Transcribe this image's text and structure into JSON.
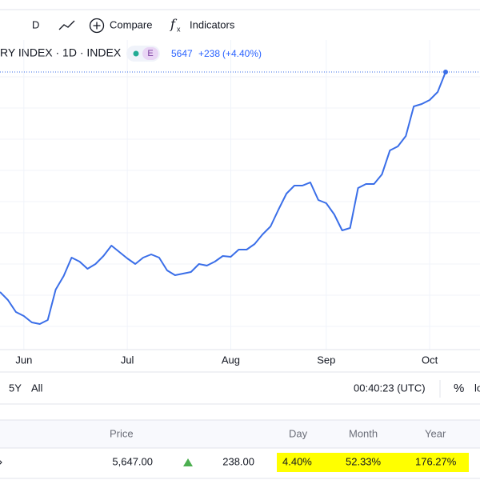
{
  "toolbar": {
    "interval": "D",
    "compare": "Compare",
    "indicators": "Indicators"
  },
  "legend": {
    "symbol": "RY INDEX · 1D · INDEX",
    "badge": "E",
    "last": "5647",
    "change": "+238",
    "change_pct": "(+4.40%)"
  },
  "range_bar": {
    "ranges": [
      "5Y",
      "All"
    ],
    "clock": "00:40:23 (UTC)",
    "percent": "%",
    "log": "lo"
  },
  "table": {
    "headers": [
      "Price",
      "Day",
      "Month",
      "Year"
    ],
    "row": {
      "price": "5,647.00",
      "change": "238.00",
      "day": "4.40%",
      "month": "52.33%",
      "year": "176.27%"
    }
  },
  "chart_data": {
    "type": "line",
    "color": "#3a6ee8",
    "categories": [
      null,
      null,
      null,
      "Jun",
      null,
      null,
      null,
      null,
      null,
      null,
      null,
      null,
      null,
      null,
      null,
      null,
      "Jul",
      null,
      null,
      null,
      null,
      null,
      null,
      null,
      null,
      null,
      null,
      null,
      null,
      "Aug",
      null,
      null,
      null,
      null,
      null,
      null,
      null,
      null,
      null,
      null,
      null,
      "Sep",
      null,
      null,
      null,
      null,
      null,
      null,
      null,
      null,
      null,
      null,
      null,
      null,
      "Oct",
      null,
      null
    ],
    "values": [
      2347,
      2227,
      2047,
      1987,
      1891,
      1867,
      1927,
      2383,
      2587,
      2863,
      2803,
      2695,
      2767,
      2887,
      3043,
      2947,
      2851,
      2767,
      2863,
      2911,
      2863,
      2671,
      2599,
      2623,
      2647,
      2767,
      2743,
      2803,
      2887,
      2875,
      2983,
      2983,
      3067,
      3211,
      3331,
      3583,
      3823,
      3943,
      3943,
      3991,
      3727,
      3679,
      3511,
      3271,
      3307,
      3907,
      3967,
      3967,
      4111,
      4471,
      4531,
      4687,
      5131,
      5167,
      5227,
      5347,
      5647
    ]
  }
}
